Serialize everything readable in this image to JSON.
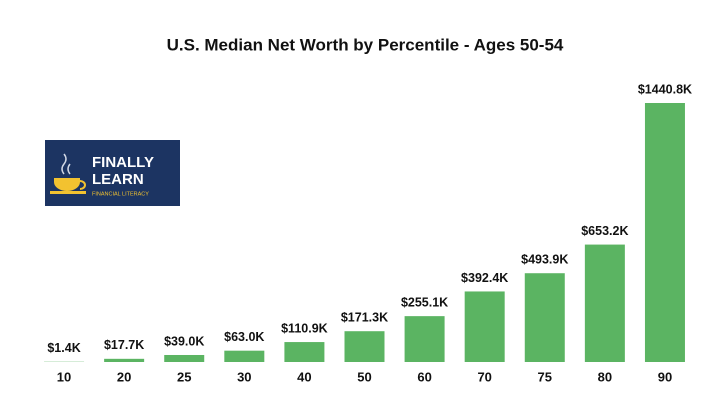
{
  "chart_data": {
    "type": "bar",
    "title": "U.S. Median Net Worth by Percentile - Ages 50-54",
    "categories": [
      "10",
      "20",
      "25",
      "30",
      "40",
      "50",
      "60",
      "70",
      "75",
      "80",
      "90"
    ],
    "values": [
      1.4,
      17.7,
      39.0,
      63.0,
      110.9,
      171.3,
      255.1,
      392.4,
      493.9,
      653.2,
      1440.8
    ],
    "value_labels": [
      "$1.4K",
      "$17.7K",
      "$39.0K",
      "$63.0K",
      "$110.9K",
      "$171.3K",
      "$255.1K",
      "$392.4K",
      "$493.9K",
      "$653.2K",
      "$1440.8K"
    ],
    "color": "#5bb462",
    "annotations": [
      "FINALLY",
      "LEARN",
      "FINANCIAL LITERACY"
    ]
  }
}
